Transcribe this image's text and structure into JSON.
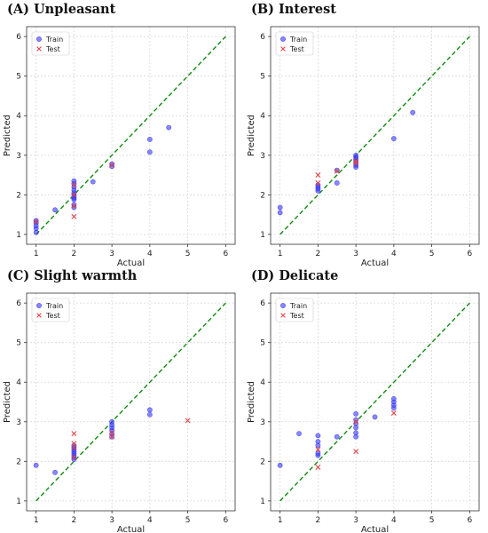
{
  "legend_train": "Train",
  "legend_test": "Test",
  "xlabel": "Actual",
  "ylabel": "Predicted",
  "colors": {
    "train": "#3b3bf5",
    "test": "#e0454a",
    "diagonal": "#118a11",
    "grid": "#d8d8d8"
  },
  "chart_data": [
    {
      "type": "scatter",
      "title": "(A) Unpleasant",
      "xlabel": "Actual",
      "ylabel": "Predicted",
      "xlim": [
        1,
        6
      ],
      "ylim": [
        1,
        6
      ],
      "xticks": [
        "1",
        "2",
        "3",
        "4",
        "5",
        "6"
      ],
      "yticks": [
        "1",
        "2",
        "3",
        "4",
        "5",
        "6"
      ],
      "grid": true,
      "legend": "top-left",
      "reference_line": {
        "from": [
          1,
          1
        ],
        "to": [
          6,
          6
        ]
      },
      "series": [
        {
          "name": "Train",
          "marker": "circle",
          "points": [
            [
              1,
              1.05
            ],
            [
              1,
              1.15
            ],
            [
              1,
              1.22
            ],
            [
              1,
              1.3
            ],
            [
              1,
              1.35
            ],
            [
              1.5,
              1.62
            ],
            [
              2,
              1.68
            ],
            [
              2,
              1.75
            ],
            [
              2,
              1.88
            ],
            [
              2,
              1.92
            ],
            [
              2,
              1.95
            ],
            [
              2,
              2.0
            ],
            [
              2,
              2.05
            ],
            [
              2,
              2.12
            ],
            [
              2,
              2.2
            ],
            [
              2,
              2.28
            ],
            [
              2,
              2.35
            ],
            [
              2.5,
              2.33
            ],
            [
              3,
              2.72
            ],
            [
              3,
              2.78
            ],
            [
              4,
              3.08
            ],
            [
              4,
              3.4
            ],
            [
              4.5,
              3.7
            ]
          ]
        },
        {
          "name": "Test",
          "marker": "x",
          "points": [
            [
              1,
              1.32
            ],
            [
              2,
              1.45
            ],
            [
              2,
              1.72
            ],
            [
              2,
              2.0
            ],
            [
              2,
              2.25
            ],
            [
              3,
              2.75
            ]
          ]
        }
      ]
    },
    {
      "type": "scatter",
      "title": "(B) Interest",
      "xlabel": "Actual",
      "ylabel": "Predicted",
      "xlim": [
        1,
        6
      ],
      "ylim": [
        1,
        6
      ],
      "xticks": [
        "1",
        "2",
        "3",
        "4",
        "5",
        "6"
      ],
      "yticks": [
        "1",
        "2",
        "3",
        "4",
        "5",
        "6"
      ],
      "grid": true,
      "legend": "top-left",
      "reference_line": {
        "from": [
          1,
          1
        ],
        "to": [
          6,
          6
        ]
      },
      "series": [
        {
          "name": "Train",
          "marker": "circle",
          "points": [
            [
              1,
              1.55
            ],
            [
              1,
              1.68
            ],
            [
              2,
              2.1
            ],
            [
              2,
              2.15
            ],
            [
              2,
              2.2
            ],
            [
              2,
              2.25
            ],
            [
              2.5,
              2.3
            ],
            [
              2.5,
              2.62
            ],
            [
              3,
              2.7
            ],
            [
              3,
              2.75
            ],
            [
              3,
              2.8
            ],
            [
              3,
              2.85
            ],
            [
              3,
              2.9
            ],
            [
              3,
              2.95
            ],
            [
              3,
              3.0
            ],
            [
              4,
              3.42
            ],
            [
              4.5,
              4.08
            ]
          ]
        },
        {
          "name": "Test",
          "marker": "x",
          "points": [
            [
              2,
              2.5
            ],
            [
              2,
              2.3
            ],
            [
              2.5,
              2.6
            ],
            [
              3,
              2.8
            ],
            [
              3,
              2.85
            ]
          ]
        }
      ]
    },
    {
      "type": "scatter",
      "title": "(C) Slight warmth",
      "xlabel": "Actual",
      "ylabel": "Predicted",
      "xlim": [
        1,
        6
      ],
      "ylim": [
        1,
        6
      ],
      "xticks": [
        "1",
        "2",
        "3",
        "4",
        "5",
        "6"
      ],
      "yticks": [
        "1",
        "2",
        "3",
        "4",
        "5",
        "6"
      ],
      "grid": true,
      "legend": "top-left",
      "reference_line": {
        "from": [
          1,
          1
        ],
        "to": [
          6,
          6
        ]
      },
      "series": [
        {
          "name": "Train",
          "marker": "circle",
          "points": [
            [
              1,
              1.9
            ],
            [
              1.5,
              1.72
            ],
            [
              2,
              2.05
            ],
            [
              2,
              2.1
            ],
            [
              2,
              2.15
            ],
            [
              2,
              2.2
            ],
            [
              2,
              2.25
            ],
            [
              2,
              2.3
            ],
            [
              2,
              2.35
            ],
            [
              2,
              2.4
            ],
            [
              3,
              2.62
            ],
            [
              3,
              2.7
            ],
            [
              3,
              2.78
            ],
            [
              3,
              2.85
            ],
            [
              3,
              2.92
            ],
            [
              3,
              3.0
            ],
            [
              4,
              3.18
            ],
            [
              4,
              3.3
            ]
          ]
        },
        {
          "name": "Test",
          "marker": "x",
          "points": [
            [
              2,
              2.7
            ],
            [
              2,
              2.45
            ],
            [
              2,
              2.35
            ],
            [
              2,
              2.1
            ],
            [
              3,
              2.62
            ],
            [
              3,
              2.72
            ],
            [
              5,
              3.03
            ]
          ]
        }
      ]
    },
    {
      "type": "scatter",
      "title": "(D) Delicate",
      "xlabel": "Actual",
      "ylabel": "Predicted",
      "xlim": [
        1,
        6
      ],
      "ylim": [
        1,
        6
      ],
      "xticks": [
        "1",
        "2",
        "3",
        "4",
        "5",
        "6"
      ],
      "yticks": [
        "1",
        "2",
        "3",
        "4",
        "5",
        "6"
      ],
      "grid": true,
      "legend": "top-left",
      "reference_line": {
        "from": [
          1,
          1
        ],
        "to": [
          6,
          6
        ]
      },
      "series": [
        {
          "name": "Train",
          "marker": "circle",
          "points": [
            [
              1,
              1.9
            ],
            [
              1.5,
              2.7
            ],
            [
              2,
              2.15
            ],
            [
              2,
              2.2
            ],
            [
              2,
              2.4
            ],
            [
              2,
              2.5
            ],
            [
              2,
              2.65
            ],
            [
              2.5,
              2.62
            ],
            [
              3,
              2.62
            ],
            [
              3,
              2.72
            ],
            [
              3,
              2.85
            ],
            [
              3,
              2.95
            ],
            [
              3,
              3.05
            ],
            [
              3,
              3.2
            ],
            [
              3.5,
              3.12
            ],
            [
              4,
              3.35
            ],
            [
              4,
              3.42
            ],
            [
              4,
              3.5
            ],
            [
              4,
              3.58
            ]
          ]
        },
        {
          "name": "Test",
          "marker": "x",
          "points": [
            [
              2,
              1.85
            ],
            [
              2,
              2.3
            ],
            [
              3,
              2.25
            ],
            [
              3,
              3.0
            ],
            [
              4,
              3.22
            ]
          ]
        }
      ]
    }
  ]
}
